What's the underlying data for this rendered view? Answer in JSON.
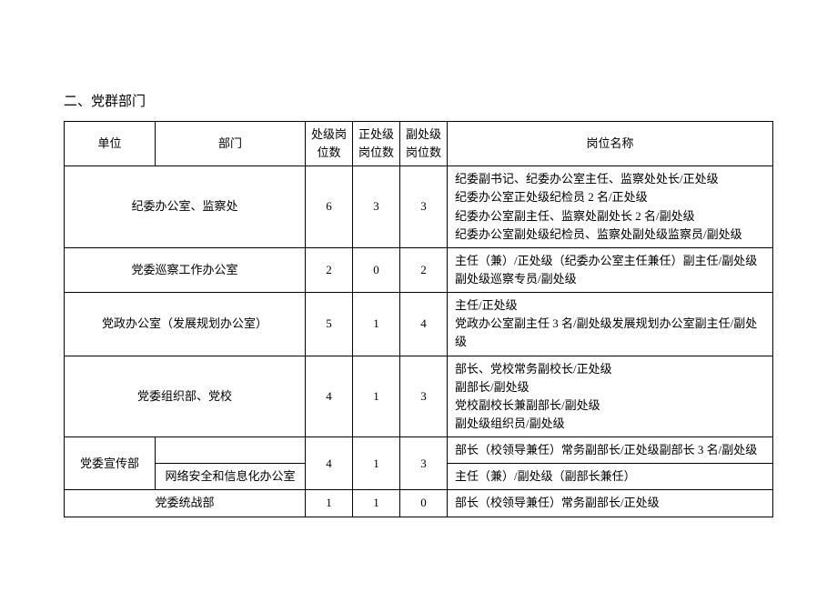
{
  "section_title": "二、党群部门",
  "headers": {
    "unit": "单位",
    "dept": "部门",
    "count1": "处级岗位数",
    "count2": "正处级岗位数",
    "count3": "副处级岗位数",
    "desc": "岗位名称"
  },
  "rows": {
    "r1": {
      "dept": "纪委办公室、监察处",
      "c1": "6",
      "c2": "3",
      "c3": "3",
      "desc_l1": "纪委副书记、纪委办公室主任、监察处处长/正处级",
      "desc_l2": "纪委办公室正处级纪检员 2 名/正处级",
      "desc_l3": "纪委办公室副主任、监察处副处长 2 名/副处级",
      "desc_l4": "纪委办公室副处级纪检员、监察处副处级监察员/副处级"
    },
    "r2": {
      "dept": "党委巡察工作办公室",
      "c1": "2",
      "c2": "0",
      "c3": "2",
      "desc_l1": "主任（兼）/正处级（纪委办公室主任兼任）副主任/副处级",
      "desc_l2": "副处级巡察专员/副处级"
    },
    "r3": {
      "dept": "党政办公室（发展规划办公室）",
      "c1": "5",
      "c2": "1",
      "c3": "4",
      "desc_l1": "主任/正处级",
      "desc_l2": "党政办公室副主任 3 名/副处级发展规划办公室副主任/副处级"
    },
    "r4": {
      "dept": "党委组织部、党校",
      "c1": "4",
      "c2": "1",
      "c3": "3",
      "desc_l1": "部长、党校常务副校长/正处级",
      "desc_l2": "副部长/副处级",
      "desc_l3": "党校副校长兼副部长/副处级",
      "desc_l4": "副处级组织员/副处级"
    },
    "r5": {
      "unit": "党委宣传部",
      "dept_sub": "网络安全和信息化办公室",
      "c1": "4",
      "c2": "1",
      "c3": "3",
      "desc_l1": "部长（校领导兼任）常务副部长/正处级副部长 3 名/副处级",
      "desc_l2": "主任（兼）/副处级（副部长兼任）"
    },
    "r6": {
      "dept": "党委统战部",
      "c1": "1",
      "c2": "1",
      "c3": "0",
      "desc_l1": "部长（校领导兼任）常务副部长/正处级"
    }
  }
}
